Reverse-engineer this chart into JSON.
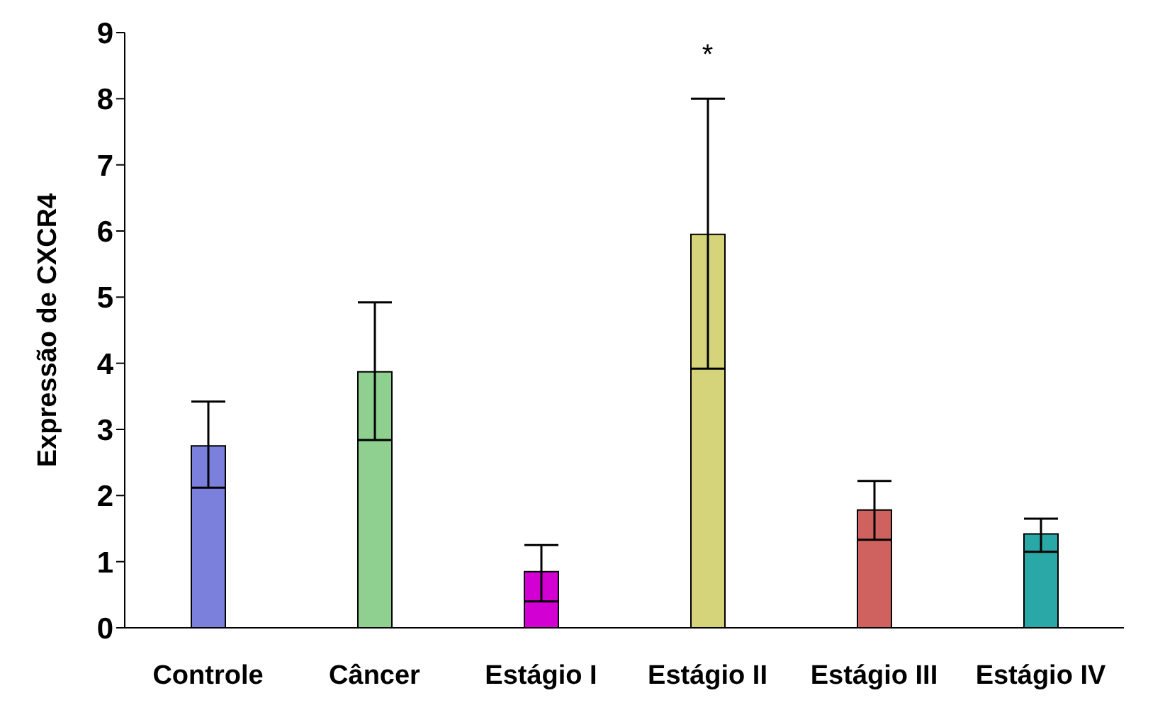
{
  "chart_data": {
    "type": "bar",
    "ylabel": "Expressão de CXCR4",
    "categories": [
      "Controle",
      "Câncer",
      "Estágio I",
      "Estágio II",
      "Estágio III",
      "Estágio IV"
    ],
    "values": [
      2.75,
      3.87,
      0.85,
      5.95,
      1.78,
      1.42
    ],
    "errors": [
      [
        2.12,
        3.42
      ],
      [
        2.84,
        4.92
      ],
      [
        0.4,
        1.25
      ],
      [
        3.92,
        8.0
      ],
      [
        1.33,
        2.22
      ],
      [
        1.15,
        1.65
      ]
    ],
    "colors": [
      "#7a80dc",
      "#8fcf8f",
      "#d200d2",
      "#d6d47a",
      "#cf625e",
      "#2aa8a8"
    ],
    "ylim": [
      0,
      9
    ],
    "yticks": [
      0,
      1,
      2,
      3,
      4,
      5,
      6,
      7,
      8,
      9
    ],
    "grid": false,
    "legend": false,
    "annotations": [
      "*"
    ]
  }
}
